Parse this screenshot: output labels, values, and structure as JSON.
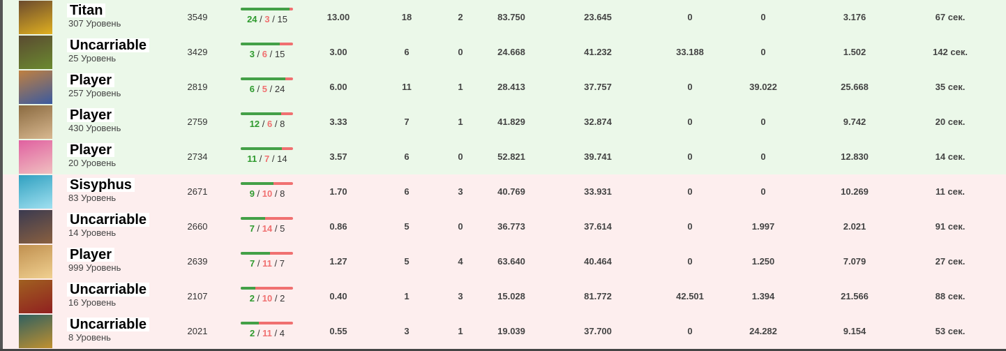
{
  "colors": {
    "win_bg": "#ebf8e9",
    "loss_bg": "#fdeeee",
    "kills": "#2e9a2e",
    "deaths": "#f07070"
  },
  "rows": [
    {
      "result": "win",
      "name": "Titan",
      "level": "307 Уровень",
      "rating": "3549",
      "k": "24",
      "d": "3",
      "a": "15",
      "kda_ratio": "13.00",
      "c1": "18",
      "c2": "2",
      "c3": "83.750",
      "c4": "23.645",
      "c5": "0",
      "c6": "0",
      "c7": "3.176",
      "time": "67 сек.",
      "avatar": [
        "#6b4a2e",
        "#e0b020"
      ]
    },
    {
      "result": "win",
      "name": "Uncarriable",
      "level": "25 Уровень",
      "rating": "3429",
      "k": "3",
      "d": "6",
      "a": "15",
      "kda_ratio": "3.00",
      "c1": "6",
      "c2": "0",
      "c3": "24.668",
      "c4": "41.232",
      "c5": "33.188",
      "c6": "0",
      "c7": "1.502",
      "time": "142 сек.",
      "avatar": [
        "#5a4a30",
        "#6b8a30"
      ]
    },
    {
      "result": "win",
      "name": "Player",
      "level": "257 Уровень",
      "rating": "2819",
      "k": "6",
      "d": "5",
      "a": "24",
      "kda_ratio": "6.00",
      "c1": "11",
      "c2": "1",
      "c3": "28.413",
      "c4": "37.757",
      "c5": "0",
      "c6": "39.022",
      "c7": "25.668",
      "time": "35 сек.",
      "avatar": [
        "#c08040",
        "#3a5aa0"
      ]
    },
    {
      "result": "win",
      "name": "Player",
      "level": "430 Уровень",
      "rating": "2759",
      "k": "12",
      "d": "6",
      "a": "8",
      "kda_ratio": "3.33",
      "c1": "7",
      "c2": "1",
      "c3": "41.829",
      "c4": "32.874",
      "c5": "0",
      "c6": "0",
      "c7": "9.742",
      "time": "20 сек.",
      "avatar": [
        "#8a6a40",
        "#d8b890"
      ]
    },
    {
      "result": "win",
      "name": "Player",
      "level": "20 Уровень",
      "rating": "2734",
      "k": "11",
      "d": "7",
      "a": "14",
      "kda_ratio": "3.57",
      "c1": "6",
      "c2": "0",
      "c3": "52.821",
      "c4": "39.741",
      "c5": "0",
      "c6": "0",
      "c7": "12.830",
      "time": "14 сек.",
      "avatar": [
        "#e060a0",
        "#f0c0c0"
      ]
    },
    {
      "result": "loss",
      "name": "Sisyphus",
      "level": "83 Уровень",
      "rating": "2671",
      "k": "9",
      "d": "10",
      "a": "8",
      "kda_ratio": "1.70",
      "c1": "6",
      "c2": "3",
      "c3": "40.769",
      "c4": "33.931",
      "c5": "0",
      "c6": "0",
      "c7": "10.269",
      "time": "11 сек.",
      "avatar": [
        "#30a0c0",
        "#a0e0f0"
      ]
    },
    {
      "result": "loss",
      "name": "Uncarriable",
      "level": "14 Уровень",
      "rating": "2660",
      "k": "7",
      "d": "14",
      "a": "5",
      "kda_ratio": "0.86",
      "c1": "5",
      "c2": "0",
      "c3": "36.773",
      "c4": "37.614",
      "c5": "0",
      "c6": "1.997",
      "c7": "2.021",
      "time": "91 сек.",
      "avatar": [
        "#3a3a50",
        "#8a6040"
      ]
    },
    {
      "result": "loss",
      "name": "Player",
      "level": "999 Уровень",
      "rating": "2639",
      "k": "7",
      "d": "11",
      "a": "7",
      "kda_ratio": "1.27",
      "c1": "5",
      "c2": "4",
      "c3": "63.640",
      "c4": "40.464",
      "c5": "0",
      "c6": "1.250",
      "c7": "7.079",
      "time": "27 сек.",
      "avatar": [
        "#c09050",
        "#f0d090"
      ]
    },
    {
      "result": "loss",
      "name": "Uncarriable",
      "level": "16 Уровень",
      "rating": "2107",
      "k": "2",
      "d": "10",
      "a": "2",
      "kda_ratio": "0.40",
      "c1": "1",
      "c2": "3",
      "c3": "15.028",
      "c4": "81.772",
      "c5": "42.501",
      "c6": "1.394",
      "c7": "21.566",
      "time": "88 сек.",
      "avatar": [
        "#a06020",
        "#902020"
      ]
    },
    {
      "result": "loss",
      "name": "Uncarriable",
      "level": "8 Уровень",
      "rating": "2021",
      "k": "2",
      "d": "11",
      "a": "4",
      "kda_ratio": "0.55",
      "c1": "3",
      "c2": "1",
      "c3": "19.039",
      "c4": "37.700",
      "c5": "0",
      "c6": "24.282",
      "c7": "9.154",
      "time": "53 сек.",
      "avatar": [
        "#306060",
        "#c09030"
      ]
    }
  ]
}
